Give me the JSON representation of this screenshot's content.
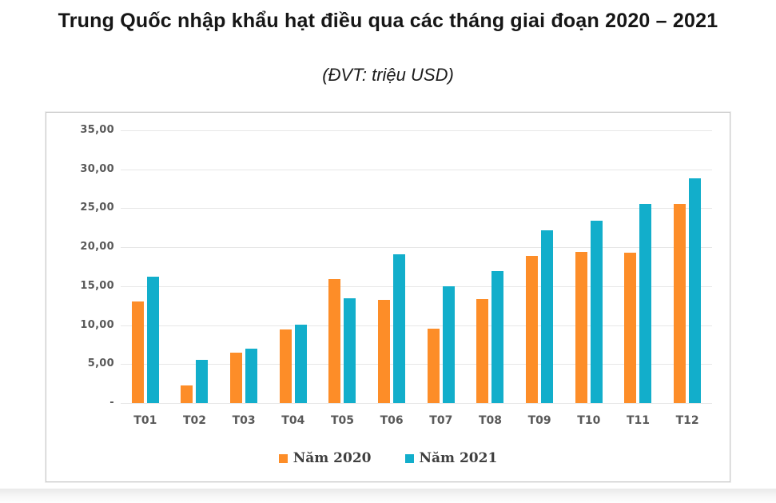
{
  "page": {
    "title": "Trung Quốc nhập khẩu hạt điều qua các tháng giai đoạn 2020 – 2021",
    "subtitle": "(ĐVT: triệu USD)"
  },
  "chart_data": {
    "type": "bar",
    "title": "Trung Quốc nhập khẩu hạt điều qua các tháng giai đoạn 2020 – 2021",
    "unit_note": "(ĐVT: triệu USD)",
    "categories": [
      "T01",
      "T02",
      "T03",
      "T04",
      "T05",
      "T06",
      "T07",
      "T08",
      "T09",
      "T10",
      "T11",
      "T12"
    ],
    "series": [
      {
        "name": "Năm 2020",
        "color": "#FD8D28",
        "values": [
          13.0,
          2.3,
          6.5,
          9.4,
          15.9,
          13.2,
          9.5,
          13.3,
          18.9,
          19.4,
          19.3,
          25.6
        ]
      },
      {
        "name": "Năm 2021",
        "color": "#12AECB",
        "values": [
          16.2,
          5.5,
          7.0,
          10.1,
          13.4,
          19.1,
          15.0,
          16.9,
          22.2,
          23.4,
          25.6,
          28.8
        ]
      }
    ],
    "ylim": [
      0,
      35
    ],
    "ytick_step": 5,
    "ytick_labels_top_down": [
      "35,00",
      "30,00",
      "25,00",
      "20,00",
      "15,00",
      "10,00",
      "5,00",
      "-"
    ],
    "grid": true,
    "legend_position": "bottom",
    "xlabel": "",
    "ylabel": ""
  },
  "colors": {
    "bar_2020": "#FD8D28",
    "bar_2021": "#12AECB",
    "gridline": "#e7e7e7",
    "axis_text": "#595959",
    "legend_text": "#3f3f3f",
    "chart_border": "#c9c9c9",
    "title_text": "#161616"
  }
}
